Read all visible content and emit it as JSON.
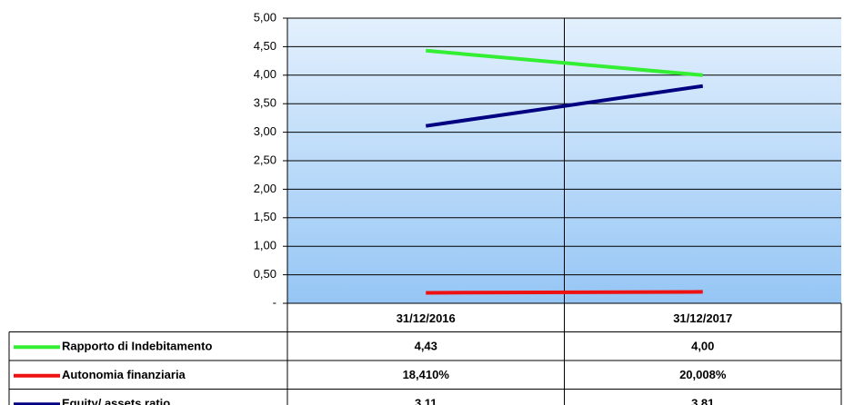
{
  "chart_data": {
    "type": "line",
    "categories": [
      "31/12/2016",
      "31/12/2017"
    ],
    "series": [
      {
        "name": "Rapporto di Indebitamento",
        "color": "#33ee33",
        "values": [
          4.43,
          4.0
        ],
        "value_labels": [
          "4,43",
          "4,00"
        ]
      },
      {
        "name": "Autonomia finanziaria",
        "color": "#ee1111",
        "values": [
          0.1841,
          0.20008
        ],
        "value_labels": [
          "18,410%",
          "20,008%"
        ]
      },
      {
        "name": "Equity/ assets ratio",
        "color": "#000080",
        "values": [
          3.11,
          3.81
        ],
        "value_labels": [
          "3,11",
          "3,81"
        ]
      }
    ],
    "ylim": [
      0,
      5
    ],
    "yticks": [
      {
        "value": 0,
        "label": "-"
      },
      {
        "value": 0.5,
        "label": "0,50"
      },
      {
        "value": 1,
        "label": "1,00"
      },
      {
        "value": 1.5,
        "label": "1,50"
      },
      {
        "value": 2,
        "label": "2,00"
      },
      {
        "value": 2.5,
        "label": "2,50"
      },
      {
        "value": 3,
        "label": "3,00"
      },
      {
        "value": 3.5,
        "label": "3,50"
      },
      {
        "value": 4,
        "label": "4,00"
      },
      {
        "value": 4.5,
        "label": "4,50"
      },
      {
        "value": 5,
        "label": "5,00"
      }
    ],
    "grid": true
  }
}
